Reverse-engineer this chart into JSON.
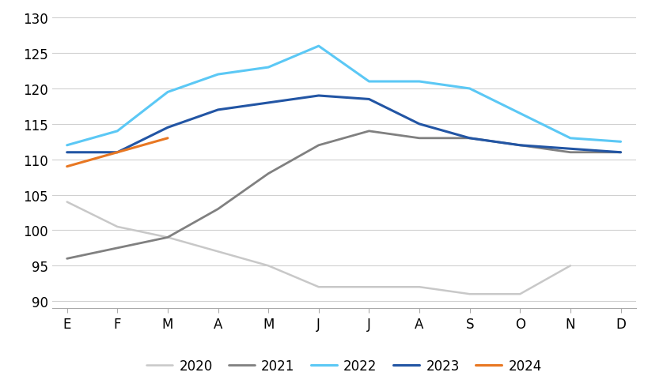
{
  "months": [
    "E",
    "F",
    "M",
    "A",
    "M",
    "J",
    "J",
    "A",
    "S",
    "O",
    "N",
    "D"
  ],
  "series": {
    "2020": [
      104,
      100.5,
      99,
      97,
      95,
      92,
      92,
      92,
      91,
      91,
      95,
      null
    ],
    "2021": [
      96,
      97.5,
      99,
      103,
      108,
      112,
      114,
      113,
      113,
      112,
      111,
      111
    ],
    "2022": [
      112,
      114,
      119.5,
      122,
      123,
      126,
      121,
      121,
      120,
      116.5,
      113,
      112.5
    ],
    "2023": [
      111,
      111,
      114.5,
      117,
      118,
      119,
      118.5,
      115,
      113,
      112,
      111.5,
      111
    ],
    "2024": [
      109,
      111,
      113,
      null,
      null,
      null,
      null,
      null,
      null,
      null,
      null,
      null
    ]
  },
  "colors": {
    "2020": "#c8c8c8",
    "2021": "#808080",
    "2022": "#5bc8f5",
    "2023": "#2255a4",
    "2024": "#e87722"
  },
  "line_widths": {
    "2020": 1.8,
    "2021": 2.0,
    "2022": 2.2,
    "2023": 2.2,
    "2024": 2.2
  },
  "ylim": [
    89,
    131
  ],
  "yticks": [
    90,
    95,
    100,
    105,
    110,
    115,
    120,
    125,
    130
  ],
  "background_color": "#ffffff",
  "grid_color": "#d0d0d0",
  "legend_order": [
    "2020",
    "2021",
    "2022",
    "2023",
    "2024"
  ]
}
